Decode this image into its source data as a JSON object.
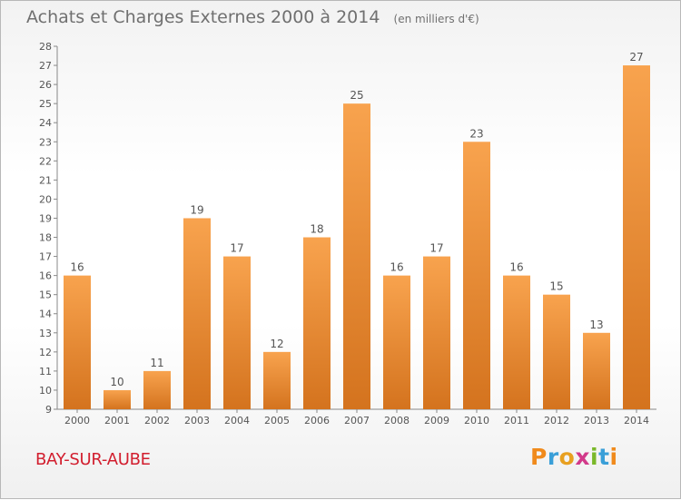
{
  "header": {
    "title": "Achats et Charges Externes 2000 à 2014",
    "unit": "(en milliers d'€)"
  },
  "footer": {
    "commune": "BAY-SUR-AUBE",
    "brand": "Proxiti"
  },
  "colors": {
    "bar_light": "#f8a34e",
    "bar_dark": "#d4731e",
    "text": "#555555",
    "commune": "#d21e2e",
    "logo": [
      "#f08a1c",
      "#3a9fd8",
      "#e8a020",
      "#d23a8a",
      "#7ab82a",
      "#3a9fd8",
      "#f08a1c"
    ]
  },
  "chart_data": {
    "type": "bar",
    "title": "Achats et Charges Externes 2000 à 2014",
    "subtitle": "(en milliers d'€)",
    "xlabel": "",
    "ylabel": "",
    "ylim": [
      9,
      28
    ],
    "yticks": [
      9,
      10,
      11,
      12,
      13,
      14,
      15,
      16,
      17,
      18,
      19,
      20,
      21,
      22,
      23,
      24,
      25,
      26,
      27,
      28
    ],
    "grid": false,
    "legend": "none",
    "categories": [
      "2000",
      "2001",
      "2002",
      "2003",
      "2004",
      "2005",
      "2006",
      "2007",
      "2008",
      "2009",
      "2010",
      "2011",
      "2012",
      "2013",
      "2014"
    ],
    "values": [
      16,
      10,
      11,
      19,
      17,
      12,
      18,
      25,
      16,
      17,
      23,
      16,
      15,
      13,
      27
    ]
  }
}
